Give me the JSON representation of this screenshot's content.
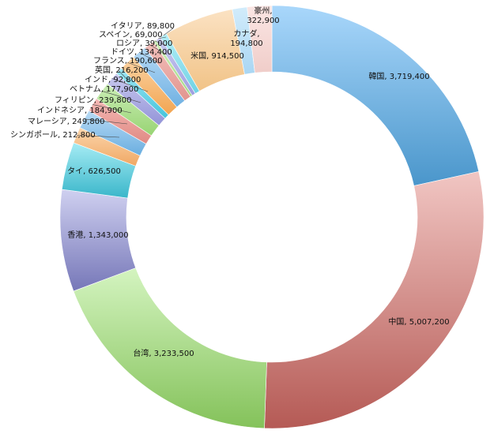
{
  "chart_data": {
    "type": "pie",
    "donut": true,
    "title": "",
    "legend": "none",
    "start_angle_deg": 0,
    "direction": "clockwise",
    "slices": [
      {
        "label": "韓国",
        "value": 3719400,
        "display": "3,719,400",
        "color_top": "#a9d7fb",
        "color_bottom": "#4a96cb"
      },
      {
        "label": "中国",
        "value": 5007200,
        "display": "5,007,200",
        "color_top": "#f1c6c3",
        "color_bottom": "#b55a55"
      },
      {
        "label": "台湾",
        "value": 3233500,
        "display": "3,233,500",
        "color_top": "#d4f4c0",
        "color_bottom": "#84c25a"
      },
      {
        "label": "香港",
        "value": 1343000,
        "display": "1,343,000",
        "color_top": "#cfd0f0",
        "color_bottom": "#7677b8"
      },
      {
        "label": "タイ",
        "value": 626500,
        "display": "626,500",
        "color_top": "#a6ecf4",
        "color_bottom": "#3ab6ca"
      },
      {
        "label": "シンガポール",
        "value": 212800,
        "display": "212,800",
        "color_top": "#fbd6ad",
        "color_bottom": "#f0a864"
      },
      {
        "label": "マレーシア",
        "value": 249800,
        "display": "249,800",
        "color_top": "#b9dbf5",
        "color_bottom": "#6aaee0"
      },
      {
        "label": "インドネシア",
        "value": 184900,
        "display": "184,900",
        "color_top": "#f4b8b4",
        "color_bottom": "#e08a84"
      },
      {
        "label": "フィリピン",
        "value": 239800,
        "display": "239,800",
        "color_top": "#cbedb6",
        "color_bottom": "#98d474"
      },
      {
        "label": "ベトナム",
        "value": 177900,
        "display": "177,900",
        "color_top": "#c9c9ef",
        "color_bottom": "#9394d8"
      },
      {
        "label": "インド",
        "value": 92800,
        "display": "92,800",
        "color_top": "#9ee6f3",
        "color_bottom": "#46c4dc"
      },
      {
        "label": "英国",
        "value": 216200,
        "display": "216,200",
        "color_top": "#fbd3a3",
        "color_bottom": "#f2a552"
      },
      {
        "label": "フランス",
        "value": 190600,
        "display": "190,600",
        "color_top": "#b5d9f6",
        "color_bottom": "#70b1e2"
      },
      {
        "label": "ドイツ",
        "value": 134400,
        "display": "134,400",
        "color_top": "#f2c0bc",
        "color_bottom": "#e2958f"
      },
      {
        "label": "ロシア",
        "value": 39000,
        "display": "39,000",
        "color_top": "#d0f0bc",
        "color_bottom": "#a3d883"
      },
      {
        "label": "スペイン",
        "value": 69000,
        "display": "69,000",
        "color_top": "#cbcbef",
        "color_bottom": "#9d9ee0"
      },
      {
        "label": "イタリア",
        "value": 89800,
        "display": "89,800",
        "color_top": "#b4eef7",
        "color_bottom": "#6fd2e4"
      },
      {
        "label": "米国",
        "value": 914500,
        "display": "914,500",
        "color_top": "#fbe2c3",
        "color_bottom": "#f1c387"
      },
      {
        "label": "カナダ",
        "value": 194800,
        "display": "194,800",
        "color_top": "#d2ecfb",
        "color_bottom": "#a9d6f3"
      },
      {
        "label": "豪州",
        "value": 322900,
        "display": "322,900",
        "color_top": "#fbe6e4",
        "color_bottom": "#f0cdc9"
      }
    ]
  }
}
